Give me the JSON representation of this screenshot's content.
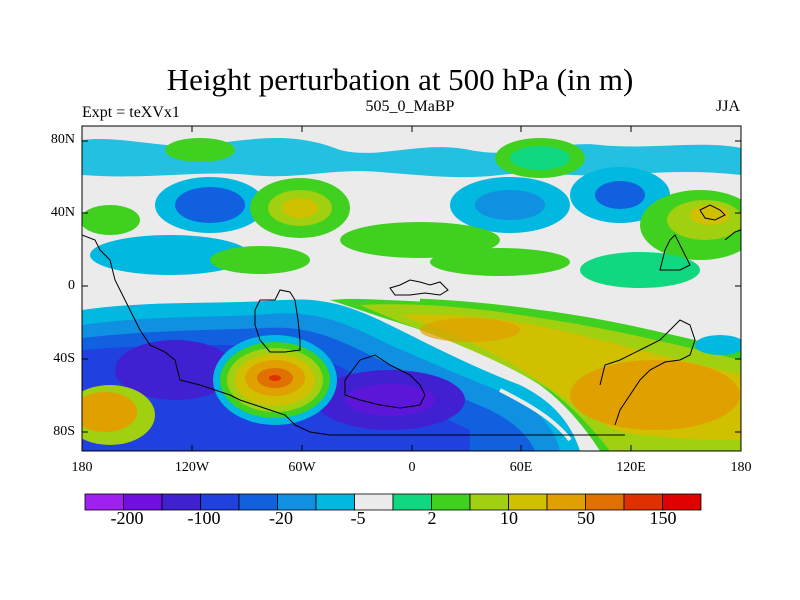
{
  "title": "Height perturbation at 500 hPa (in m)",
  "left_label": "Expt = teXVx1",
  "center_label": "505_0_MaBP",
  "right_label": "JJA",
  "lat_labels": [
    "80N",
    "40N",
    "0",
    "40S",
    "80S"
  ],
  "lon_labels": [
    "180",
    "120W",
    "60W",
    "0",
    "60E",
    "120E",
    "180"
  ],
  "colorbar": {
    "colors": [
      "#a020f0",
      "#7010e0",
      "#4020d0",
      "#2040e0",
      "#1060e0",
      "#1090e0",
      "#00b8e0",
      "#ebebeb",
      "#10d880",
      "#40d020",
      "#a0d010",
      "#d0c000",
      "#e0a000",
      "#e07000",
      "#e03000",
      "#e00000"
    ],
    "labels": [
      "-200",
      "-100",
      "-20",
      "-5",
      "2",
      "10",
      "50",
      "150"
    ]
  },
  "colors": {
    "neg_strong": "#4020d0",
    "neg_mid": "#1060e0",
    "neg_weak": "#00b8e0",
    "neutral": "#ebebeb",
    "pos_weak": "#10d880",
    "pos_green": "#40d020",
    "pos_mid": "#d0c000",
    "pos_strong": "#e08000",
    "pos_max": "#e03000"
  }
}
